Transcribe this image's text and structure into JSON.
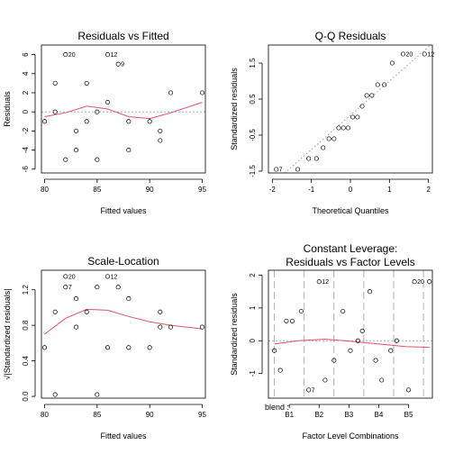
{
  "chart_data": [
    {
      "type": "scatter",
      "title": "Residuals vs Fitted",
      "xlabel": "Fitted values",
      "ylabel": "Residuals",
      "xlim": [
        79.7,
        95.3
      ],
      "ylim": [
        -6.4,
        7.0
      ],
      "xticks": [
        "80",
        "85",
        "90",
        "95"
      ],
      "yticks": [
        "-6",
        "-4",
        "-2",
        "0",
        "2",
        "4",
        "6"
      ],
      "points": {
        "x": [
          80,
          81,
          81,
          82,
          82,
          83,
          83,
          84,
          84,
          85,
          85,
          86,
          86,
          87,
          88,
          88,
          90,
          91,
          91,
          92,
          95
        ],
        "y": [
          -1,
          3,
          0,
          6,
          -5,
          -4,
          -2,
          3,
          -1,
          0,
          -5,
          1,
          6,
          5,
          -4,
          -1,
          -1,
          -2,
          -3,
          2,
          2
        ]
      },
      "point_labels": [
        {
          "text": "20",
          "x": 82,
          "y": 6
        },
        {
          "text": "12",
          "x": 86,
          "y": 6
        },
        {
          "text": "9",
          "x": 87,
          "y": 5
        }
      ],
      "smooth": {
        "x": [
          80,
          82,
          84,
          86,
          88,
          90,
          92,
          95
        ],
        "y": [
          -0.5,
          -0.1,
          0.6,
          0.3,
          -0.5,
          -0.7,
          -0.1,
          1.0
        ]
      },
      "reference_line": 0
    },
    {
      "type": "scatter",
      "title": "Q-Q Residuals",
      "xlabel": "Theoretical Quantiles",
      "ylabel": "Standardized residuals",
      "xlim": [
        -2.1,
        2.1
      ],
      "ylim": [
        -1.55,
        2.0
      ],
      "xticks": [
        "-2",
        "-1",
        "0",
        "1",
        "2"
      ],
      "yticks": [
        "-1.5",
        "-0.5",
        "0.5",
        "1.5"
      ],
      "points": {
        "x": [
          -1.9,
          -1.35,
          -1.07,
          -0.87,
          -0.7,
          -0.55,
          -0.42,
          -0.3,
          -0.18,
          -0.06,
          0.06,
          0.18,
          0.3,
          0.42,
          0.55,
          0.7,
          0.87,
          1.07,
          1.35,
          1.9
        ],
        "y": [
          -1.45,
          -1.45,
          -1.15,
          -1.15,
          -0.85,
          -0.6,
          -0.6,
          -0.3,
          -0.3,
          -0.3,
          0.0,
          0.0,
          0.3,
          0.6,
          0.6,
          0.9,
          0.9,
          1.5,
          1.75,
          1.75
        ]
      },
      "point_labels": [
        {
          "text": "7",
          "x": -1.9,
          "y": -1.45
        },
        {
          "text": "20",
          "x": 1.35,
          "y": 1.75
        },
        {
          "text": "12",
          "x": 1.9,
          "y": 1.75
        }
      ],
      "reference_line": {
        "intercept": 0.05,
        "slope": 0.95
      }
    },
    {
      "type": "scatter",
      "title": "Scale-Location",
      "xlabel": "Fitted values",
      "ylabel": "√|Standardized residuals|",
      "xlim": [
        79.7,
        95.3
      ],
      "ylim": [
        -0.02,
        1.42
      ],
      "xticks": [
        "80",
        "85",
        "90",
        "95"
      ],
      "yticks": [
        "0.0",
        "0.4",
        "0.8",
        "1.2"
      ],
      "points": {
        "x": [
          80,
          81,
          81,
          82,
          82,
          83,
          83,
          84,
          85,
          85,
          86,
          86,
          87,
          88,
          88,
          90,
          91,
          91,
          92,
          95
        ],
        "y": [
          0.55,
          0.95,
          0.02,
          1.35,
          1.23,
          1.1,
          0.78,
          0.95,
          0.02,
          1.23,
          1.35,
          0.55,
          1.23,
          1.1,
          0.55,
          0.55,
          0.95,
          0.78,
          0.78,
          0.78
        ]
      },
      "point_labels": [
        {
          "text": "20",
          "x": 82,
          "y": 1.35
        },
        {
          "text": "7",
          "x": 82,
          "y": 1.23
        },
        {
          "text": "12",
          "x": 86,
          "y": 1.35
        }
      ],
      "smooth": {
        "x": [
          80,
          82,
          84,
          86,
          88,
          90,
          92,
          95
        ],
        "y": [
          0.7,
          0.88,
          0.98,
          0.97,
          0.9,
          0.84,
          0.8,
          0.76
        ]
      }
    },
    {
      "type": "scatter",
      "title": "Constant Leverage:",
      "subtitle": "Residuals vs Factor Levels",
      "xlabel": "Factor Level Combinations",
      "ylabel": "Standardized residuals",
      "factor_label": "blend :",
      "xlim": [
        0,
        5.5
      ],
      "ylim": [
        -1.75,
        2.15
      ],
      "xticks": [
        "B1",
        "B2",
        "B3",
        "B4",
        "B5"
      ],
      "yticks": [
        "-1",
        "0",
        "1",
        "2"
      ],
      "points": {
        "x": [
          0.2,
          0.4,
          0.6,
          0.8,
          1.1,
          1.35,
          1.7,
          1.9,
          2.2,
          2.5,
          2.75,
          3.0,
          3.15,
          3.4,
          3.6,
          3.8,
          4.1,
          4.3,
          4.7,
          4.9,
          5.4
        ],
        "y": [
          -0.3,
          -0.9,
          0.6,
          0.6,
          0.9,
          -1.5,
          1.8,
          -1.2,
          -0.6,
          0.9,
          -0.3,
          0.0,
          0.3,
          1.5,
          -0.6,
          -1.2,
          -0.3,
          0.0,
          -1.5,
          1.8,
          1.8
        ]
      },
      "point_labels": [
        {
          "text": "7",
          "x": 1.35,
          "y": -1.5
        },
        {
          "text": "12",
          "x": 1.7,
          "y": 1.8
        },
        {
          "text": "20",
          "x": 4.9,
          "y": 1.8
        }
      ],
      "smooth": {
        "x": [
          0.2,
          1.0,
          1.9,
          2.8,
          3.7,
          4.6,
          5.4
        ],
        "y": [
          -0.1,
          0.0,
          0.05,
          -0.02,
          -0.1,
          -0.18,
          -0.2
        ]
      },
      "reference_line": 0,
      "group_boundaries": [
        0.2,
        1.2,
        2.2,
        3.2,
        4.2,
        5.2
      ]
    }
  ],
  "colors": {
    "smooth": "#df536b",
    "reference": "#9e9e9e",
    "axis": "#000000"
  }
}
